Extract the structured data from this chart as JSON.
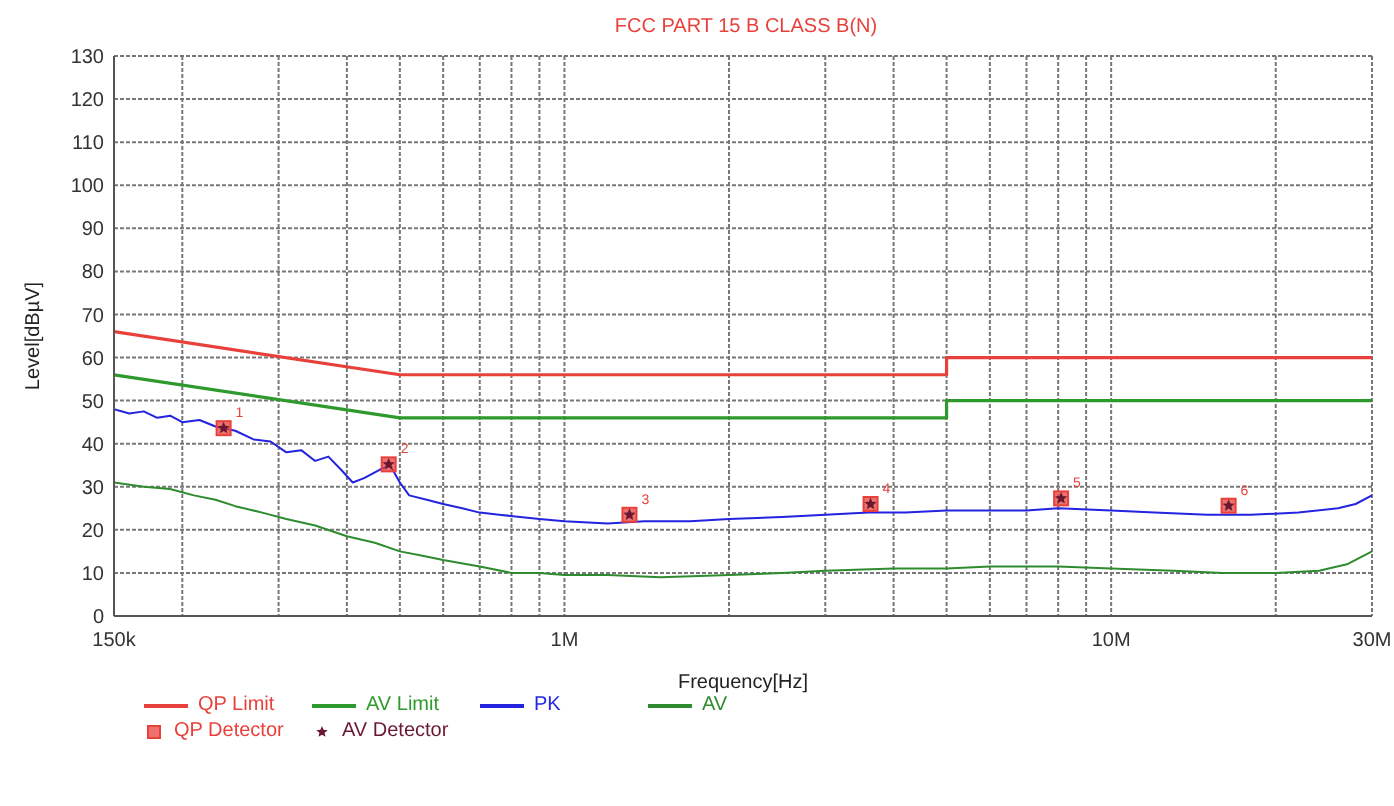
{
  "chart_data": {
    "type": "line",
    "title": "FCC PART 15 B CLASS B(N)",
    "xlabel": "Frequency[Hz]",
    "ylabel": "Level[dBµV]",
    "log": "x",
    "grid": true,
    "legend": "bottom left",
    "xlim": [
      150000,
      30000000
    ],
    "xticks": [
      {
        "value": 150000,
        "label": "150k"
      },
      {
        "value": 200000,
        "label": null
      },
      {
        "value": 300000,
        "label": null
      },
      {
        "value": 400000,
        "label": null
      },
      {
        "value": 500000,
        "label": null
      },
      {
        "value": 600000,
        "label": null
      },
      {
        "value": 700000,
        "label": null
      },
      {
        "value": 800000,
        "label": null
      },
      {
        "value": 900000,
        "label": null
      },
      {
        "value": 1000000,
        "label": "1M"
      },
      {
        "value": 2000000,
        "label": null
      },
      {
        "value": 3000000,
        "label": null
      },
      {
        "value": 4000000,
        "label": null
      },
      {
        "value": 5000000,
        "label": null
      },
      {
        "value": 6000000,
        "label": null
      },
      {
        "value": 7000000,
        "label": null
      },
      {
        "value": 8000000,
        "label": null
      },
      {
        "value": 9000000,
        "label": null
      },
      {
        "value": 10000000,
        "label": "10M"
      },
      {
        "value": 20000000,
        "label": null
      },
      {
        "value": 30000000,
        "label": "30M"
      }
    ],
    "ylim": [
      0,
      130
    ],
    "yticks": [
      0,
      10,
      20,
      30,
      40,
      50,
      60,
      70,
      80,
      90,
      100,
      110,
      120,
      130
    ],
    "series": [
      {
        "name": "QP Limit",
        "color": "#e8413c",
        "type": "line",
        "x": [
          150000,
          500000,
          5000000,
          5000000,
          30000000
        ],
        "values": [
          66,
          56,
          56,
          60,
          60
        ]
      },
      {
        "name": "AV Limit",
        "color": "#2e9a2e",
        "type": "line",
        "x": [
          150000,
          500000,
          5000000,
          5000000,
          30000000
        ],
        "values": [
          56,
          46,
          46,
          50,
          50
        ]
      },
      {
        "name": "PK",
        "color": "#2323e0",
        "type": "line",
        "x": [
          150000,
          160000,
          170000,
          180000,
          190000,
          200000,
          215000,
          230000,
          250000,
          270000,
          290000,
          310000,
          330000,
          350000,
          370000,
          390000,
          410000,
          430000,
          460000,
          480000,
          500000,
          520000,
          560000,
          600000,
          650000,
          700000,
          760000,
          830000,
          900000,
          1000000,
          1200000,
          1400000,
          1700000,
          2000000,
          2500000,
          3000000,
          3600000,
          4200000,
          5000000,
          6000000,
          7000000,
          8000000,
          10000000,
          12000000,
          15000000,
          18000000,
          22000000,
          26000000,
          28000000,
          30000000
        ],
        "values": [
          48,
          47,
          47.5,
          46,
          46.5,
          45,
          45.5,
          44,
          43,
          41,
          40.5,
          38,
          38.5,
          36,
          37,
          34,
          31,
          32,
          34,
          35,
          31,
          28,
          27,
          26,
          25,
          24,
          23.5,
          23,
          22.5,
          22,
          21.5,
          22,
          22,
          22.5,
          23,
          23.5,
          24,
          24,
          24.5,
          24.5,
          24.5,
          25,
          24.5,
          24,
          23.5,
          23.5,
          24,
          25,
          26,
          28
        ]
      },
      {
        "name": "AV",
        "color": "#2e8b2e",
        "type": "line",
        "x": [
          150000,
          170000,
          190000,
          210000,
          230000,
          250000,
          280000,
          310000,
          350000,
          400000,
          450000,
          500000,
          550000,
          600000,
          700000,
          800000,
          900000,
          1000000,
          1200000,
          1500000,
          2000000,
          2500000,
          3000000,
          4000000,
          5000000,
          6000000,
          8000000,
          10000000,
          13000000,
          16000000,
          20000000,
          24000000,
          27000000,
          30000000
        ],
        "values": [
          31,
          30,
          29.5,
          28,
          27,
          25.5,
          24,
          22.5,
          21,
          18.5,
          17,
          15,
          14,
          13,
          11.5,
          10,
          10,
          9.5,
          9.5,
          9,
          9.5,
          10,
          10.5,
          11,
          11,
          11.5,
          11.5,
          11,
          10.5,
          10,
          10,
          10.5,
          12,
          15
        ]
      },
      {
        "name": "QP Detector",
        "color": "#e8413c",
        "type": "scatter",
        "marker": "square",
        "x": [
          238000,
          477000,
          1315000,
          3630000,
          8100000,
          16400000
        ],
        "values": [
          43.6,
          35.2,
          23.5,
          26,
          27.3,
          25.6
        ]
      },
      {
        "name": "AV Detector",
        "color": "#6a1830",
        "type": "scatter",
        "marker": "star",
        "x": [
          238000,
          477000,
          1315000,
          3630000,
          8100000,
          16400000
        ],
        "values": [
          43.6,
          35.2,
          23.5,
          26,
          27.3,
          25.6
        ]
      }
    ],
    "annotations": [
      {
        "text": "1",
        "x": 238000,
        "y": 43.6
      },
      {
        "text": "2",
        "x": 477000,
        "y": 35.2
      },
      {
        "text": "3",
        "x": 1315000,
        "y": 23.5
      },
      {
        "text": "4",
        "x": 3630000,
        "y": 26
      },
      {
        "text": "5",
        "x": 8100000,
        "y": 27.3
      },
      {
        "text": "6",
        "x": 16400000,
        "y": 25.6
      }
    ]
  }
}
